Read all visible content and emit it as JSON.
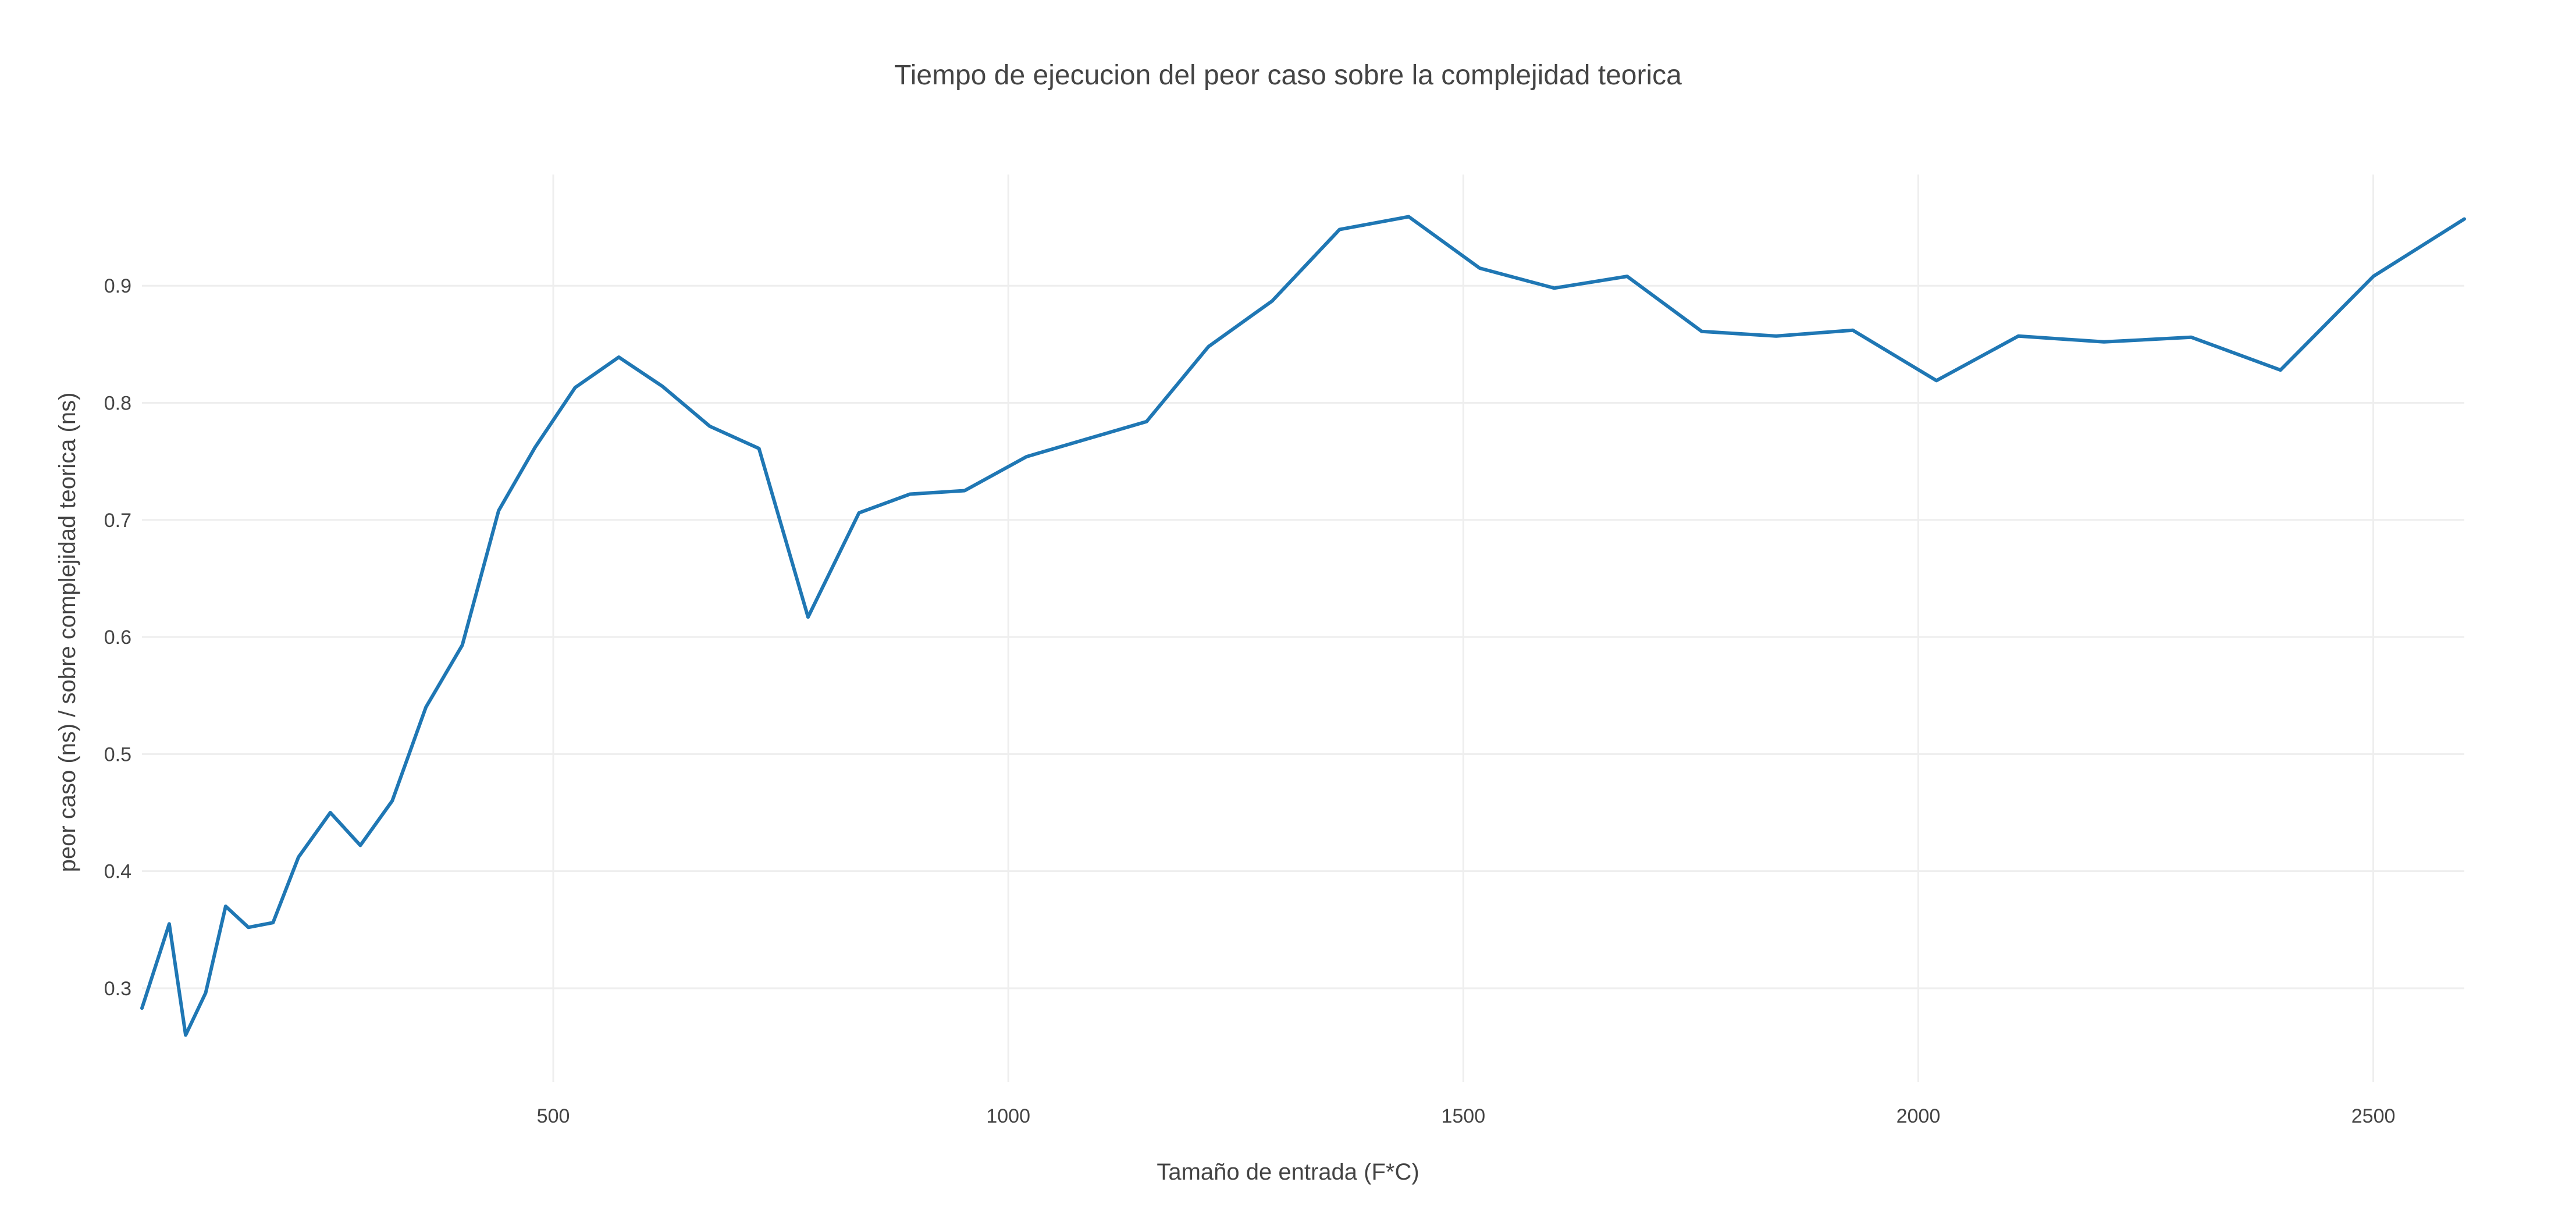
{
  "chart_data": {
    "type": "line",
    "title": "Tiempo de ejecucion del peor caso sobre  la complejidad teorica",
    "xlabel": "Tamaño de entrada (F*C)",
    "ylabel": "peor caso (ns) / sobre complejidad teorica (ns)",
    "xlim": [
      48,
      2600
    ],
    "ylim": [
      0.22,
      0.995
    ],
    "x_ticks": [
      500,
      1000,
      1500,
      2000,
      2500
    ],
    "y_ticks": [
      0.3,
      0.4,
      0.5,
      0.6,
      0.7,
      0.8,
      0.9
    ],
    "x_tick_labels": [
      "500",
      "1000",
      "1500",
      "2000",
      "2500"
    ],
    "y_tick_labels": [
      "0.3",
      "0.4",
      "0.5",
      "0.6",
      "0.7",
      "0.8",
      "0.9"
    ],
    "grid": true,
    "legend": "none",
    "line_color": "#1f77b4",
    "x": [
      48,
      78,
      96,
      118,
      140,
      165,
      192,
      220,
      255,
      288,
      323,
      360,
      400,
      440,
      480,
      524,
      572,
      620,
      672,
      726,
      780,
      836,
      892,
      952,
      1020,
      1086,
      1152,
      1220,
      1290,
      1364,
      1440,
      1518,
      1600,
      1680,
      1762,
      1844,
      1928,
      2020,
      2110,
      2204,
      2300,
      2398,
      2500,
      2600
    ],
    "y": [
      0.283,
      0.355,
      0.26,
      0.296,
      0.37,
      0.352,
      0.356,
      0.412,
      0.45,
      0.422,
      0.46,
      0.54,
      0.593,
      0.708,
      0.762,
      0.813,
      0.839,
      0.814,
      0.78,
      0.761,
      0.617,
      0.706,
      0.722,
      0.725,
      0.754,
      0.769,
      0.784,
      0.848,
      0.887,
      0.948,
      0.959,
      0.915,
      0.898,
      0.908,
      0.861,
      0.857,
      0.862,
      0.819,
      0.857,
      0.852,
      0.856,
      0.828,
      0.908,
      0.957
    ]
  }
}
